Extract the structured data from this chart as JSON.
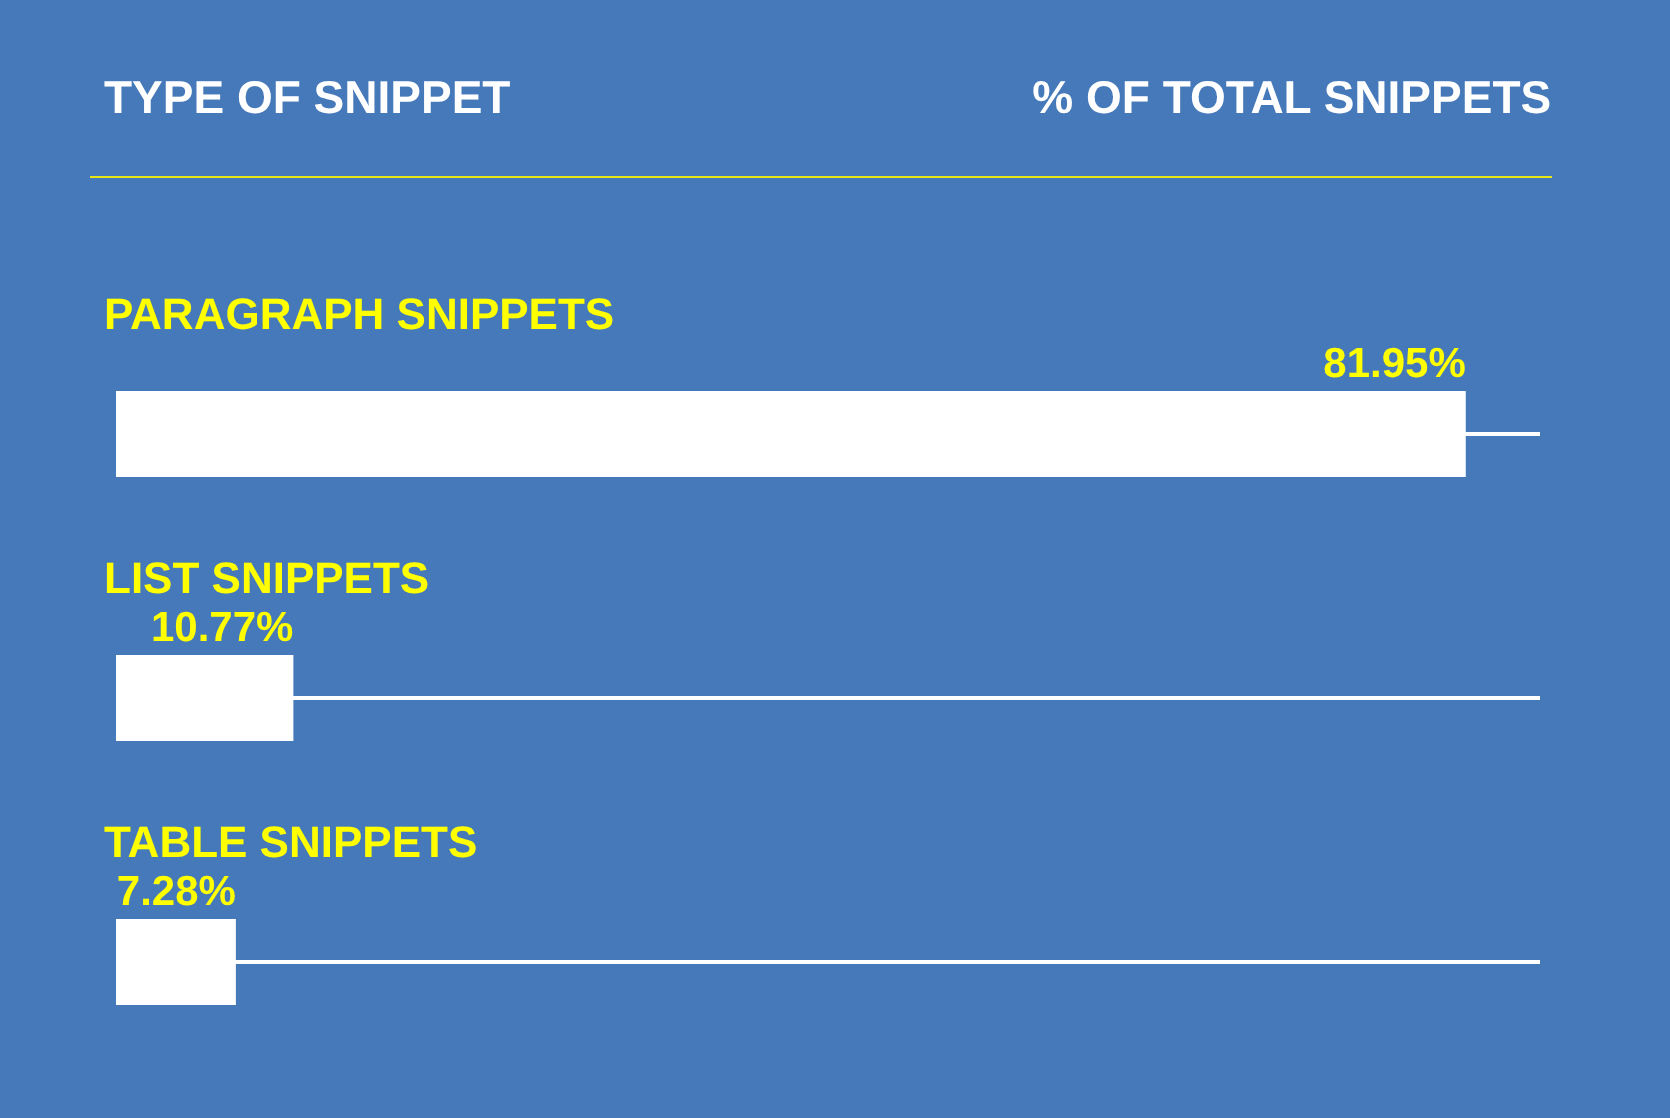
{
  "chart_data": {
    "type": "bar",
    "orientation": "horizontal",
    "ylabel": "TYPE OF SNIPPET",
    "xlabel": "% OF TOTAL SNIPPETS",
    "categories": [
      "PARAGRAPH SNIPPETS",
      "LIST SNIPPETS",
      "TABLE SNIPPETS"
    ],
    "values": [
      81.95,
      10.77,
      7.28
    ],
    "color": "#ffffff",
    "value_labels": [
      "81.95%",
      "10.77%",
      "7.28%"
    ],
    "grid": "y",
    "tick_labels": "y"
  }
}
